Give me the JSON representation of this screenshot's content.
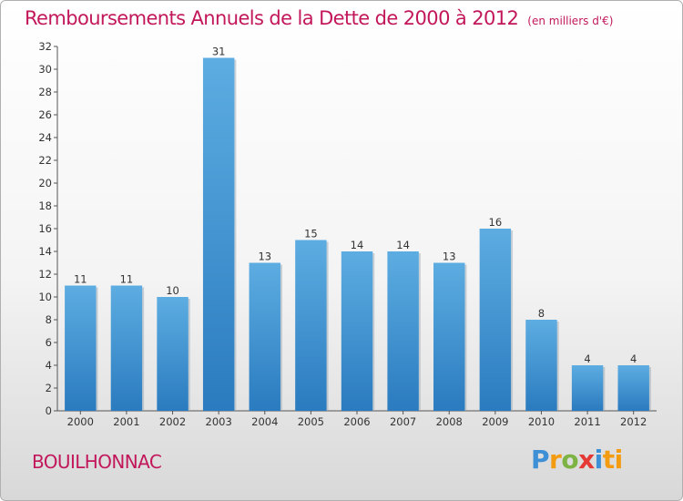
{
  "title": "Remboursements Annuels de la Dette de 2000 à 2012",
  "subtitle": "(en milliers d'€)",
  "commune": "BOUILHONNAC",
  "logo": [
    "P",
    "r",
    "o",
    "x",
    "i",
    "ti"
  ],
  "colors": {
    "bar_light": "#5dade2",
    "bar_dark": "#2a7bbf",
    "title": "#c2185b"
  },
  "chart_data": {
    "type": "bar",
    "title": "Remboursements Annuels de la Dette de 2000 à 2012",
    "subtitle": "(en milliers d'€)",
    "categories": [
      "2000",
      "2001",
      "2002",
      "2003",
      "2004",
      "2005",
      "2006",
      "2007",
      "2008",
      "2009",
      "2010",
      "2011",
      "2012"
    ],
    "values": [
      11,
      11,
      10,
      31,
      13,
      15,
      14,
      14,
      13,
      16,
      8,
      4,
      4
    ],
    "ylim": [
      0,
      32
    ],
    "yticks": [
      0,
      2,
      4,
      6,
      8,
      10,
      12,
      14,
      16,
      18,
      20,
      22,
      24,
      26,
      28,
      30,
      32
    ],
    "grid": false,
    "legend": "none"
  }
}
